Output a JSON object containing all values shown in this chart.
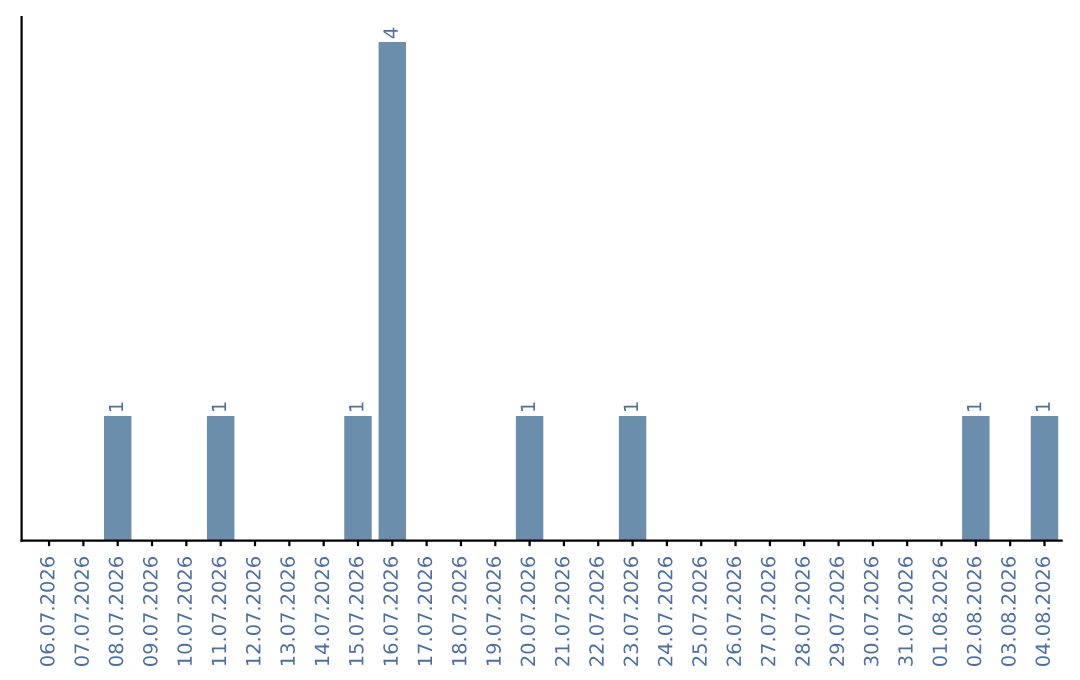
{
  "chart_data": {
    "type": "bar",
    "categories": [
      "06.07.2026",
      "07.07.2026",
      "08.07.2026",
      "09.07.2026",
      "10.07.2026",
      "11.07.2026",
      "12.07.2026",
      "13.07.2026",
      "14.07.2026",
      "15.07.2026",
      "16.07.2026",
      "17.07.2026",
      "18.07.2026",
      "19.07.2026",
      "20.07.2026",
      "21.07.2026",
      "22.07.2026",
      "23.07.2026",
      "24.07.2026",
      "25.07.2026",
      "26.07.2026",
      "27.07.2026",
      "28.07.2026",
      "29.07.2026",
      "30.07.2026",
      "31.07.2026",
      "01.08.2026",
      "02.08.2026",
      "03.08.2026",
      "04.08.2026"
    ],
    "values": [
      0,
      0,
      1,
      0,
      0,
      1,
      0,
      0,
      0,
      1,
      4,
      0,
      0,
      0,
      1,
      0,
      0,
      1,
      0,
      0,
      0,
      0,
      0,
      0,
      0,
      0,
      0,
      1,
      0,
      1
    ],
    "value_labels": [
      null,
      null,
      "1",
      null,
      null,
      "1",
      null,
      null,
      null,
      "1",
      "4",
      null,
      null,
      null,
      "1",
      null,
      null,
      "1",
      null,
      null,
      null,
      null,
      null,
      null,
      null,
      null,
      null,
      "1",
      null,
      "1"
    ],
    "color": "#6c8ead",
    "tick_labels": "x",
    "grid": false,
    "legend": false
  }
}
